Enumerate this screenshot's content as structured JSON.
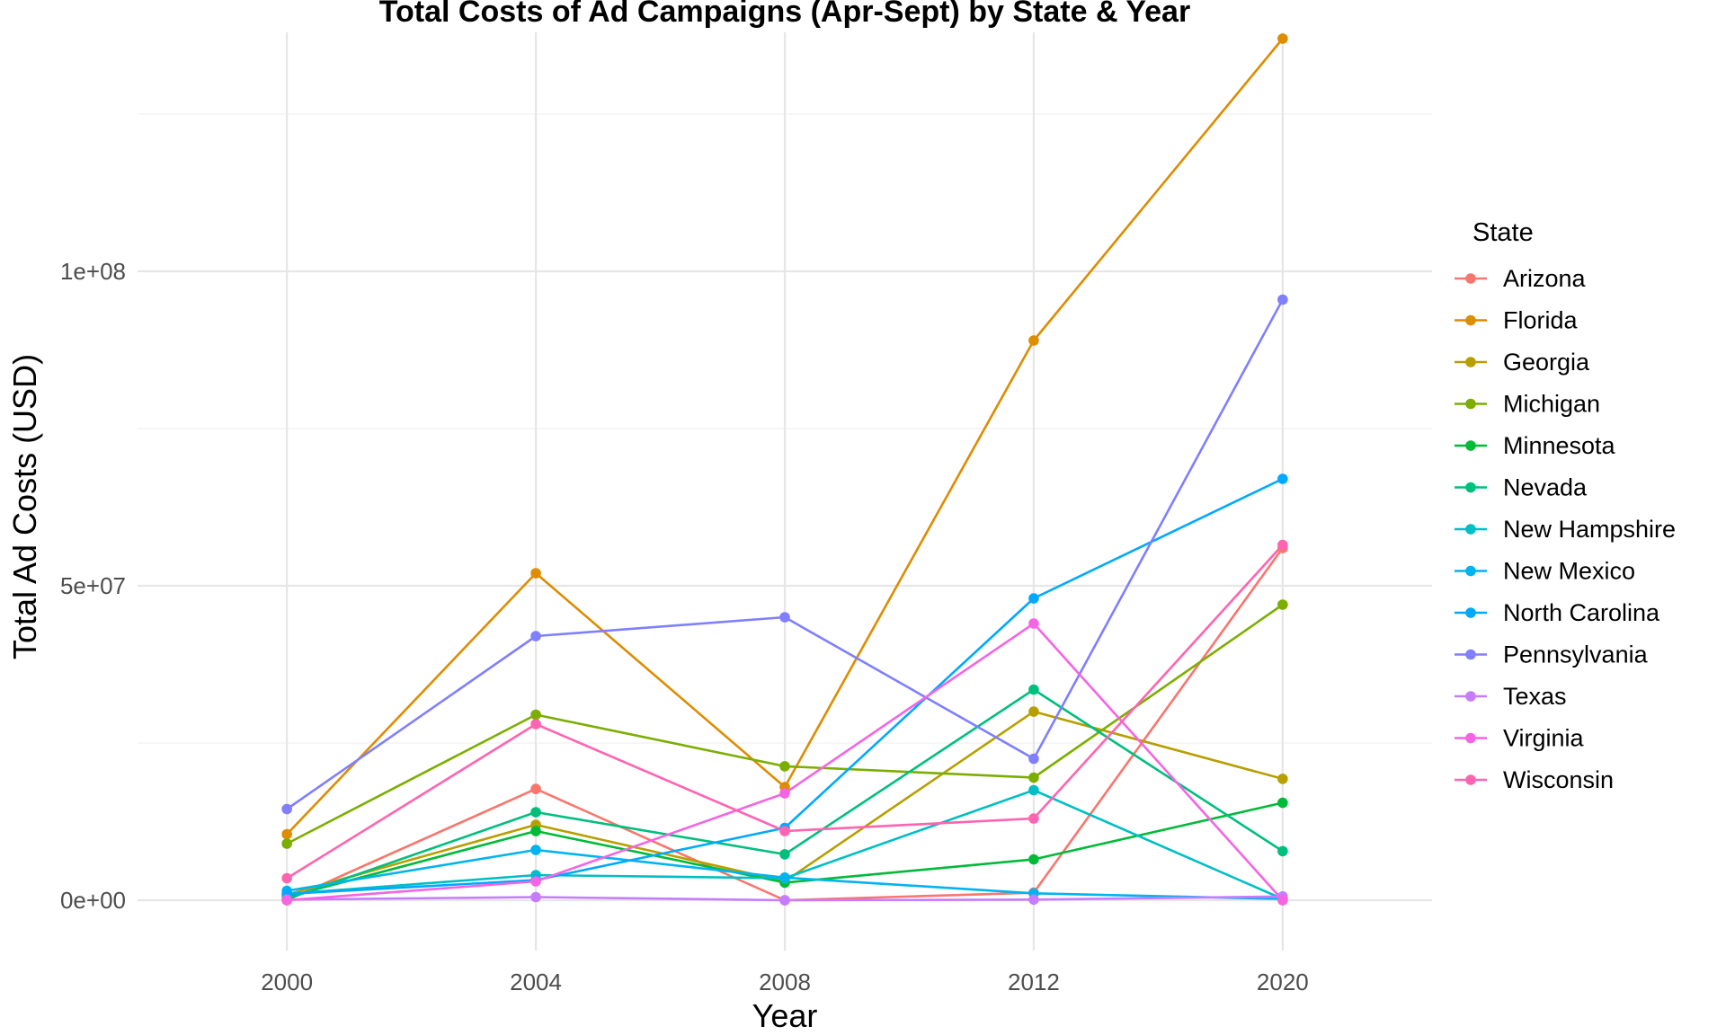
{
  "chart_data": {
    "type": "line",
    "title": "Total Costs of Ad Campaigns (Apr-Sept) by State & Year",
    "xlabel": "Year",
    "ylabel": "Total Ad Costs (USD)",
    "legend_title": "State",
    "legend_position": "right",
    "grid": true,
    "x": [
      2000,
      2004,
      2008,
      2012,
      2020
    ],
    "x_tick_labels": [
      "2000",
      "2004",
      "2008",
      "2012",
      "2020"
    ],
    "y_ticks": [
      0,
      50000000,
      100000000
    ],
    "y_tick_labels": [
      "0e+00",
      "5e+07",
      "1e+08"
    ],
    "ylim": [
      -8000000,
      138000000
    ],
    "series": [
      {
        "name": "Arizona",
        "color": "#F8766D",
        "values": [
          0,
          17700000,
          0,
          1200000,
          56000000
        ]
      },
      {
        "name": "Florida",
        "color": "#DE8C00",
        "values": [
          10500000,
          52000000,
          18000000,
          89000000,
          137000000
        ]
      },
      {
        "name": "Georgia",
        "color": "#B79F00",
        "values": [
          900000,
          12000000,
          3000000,
          30000000,
          19300000
        ]
      },
      {
        "name": "Michigan",
        "color": "#7CAE00",
        "values": [
          9000000,
          29500000,
          21300000,
          19500000,
          47000000
        ]
      },
      {
        "name": "Minnesota",
        "color": "#00BA38",
        "values": [
          500000,
          11000000,
          2800000,
          6500000,
          15500000
        ]
      },
      {
        "name": "Nevada",
        "color": "#00BF7D",
        "values": [
          200000,
          14000000,
          7300000,
          33500000,
          7800000
        ]
      },
      {
        "name": "New Hampshire",
        "color": "#00BFC4",
        "values": [
          1000000,
          4000000,
          3500000,
          17500000,
          200000
        ]
      },
      {
        "name": "New Mexico",
        "color": "#00B4F0",
        "values": [
          1500000,
          8000000,
          3600000,
          1100000,
          200000
        ]
      },
      {
        "name": "North Carolina",
        "color": "#00A9FF",
        "values": [
          1000000,
          3200000,
          11500000,
          48000000,
          67000000
        ]
      },
      {
        "name": "Pennsylvania",
        "color": "#7F7FFF",
        "values": [
          14500000,
          42000000,
          45000000,
          22500000,
          95500000
        ]
      },
      {
        "name": "Texas",
        "color": "#C77CFF",
        "values": [
          100000,
          500000,
          0,
          100000,
          600000
        ]
      },
      {
        "name": "Virginia",
        "color": "#F564E3",
        "values": [
          0,
          3000000,
          17000000,
          44000000,
          0
        ]
      },
      {
        "name": "Wisconsin",
        "color": "#FF64B0",
        "values": [
          3500000,
          28000000,
          11000000,
          13000000,
          56500000
        ]
      }
    ]
  }
}
